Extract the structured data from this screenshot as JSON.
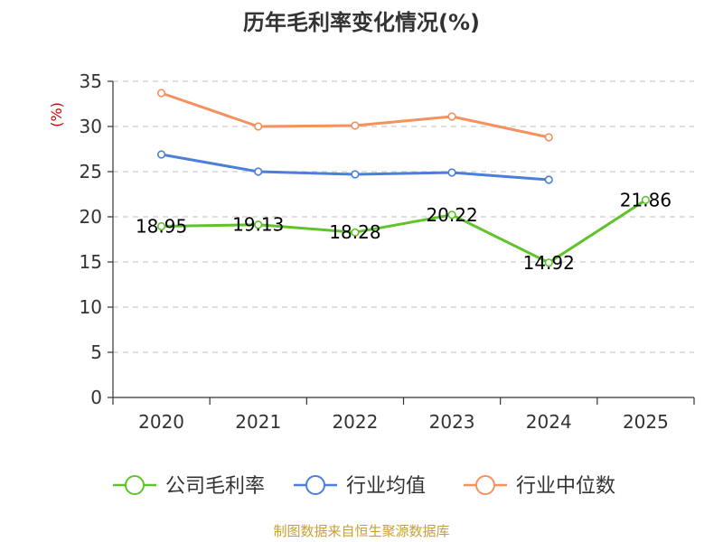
{
  "chart_data": {
    "type": "line",
    "title": "历年毛利率变化情况(%)",
    "ylabel": "(%)",
    "xlabel": "",
    "categories": [
      "2020",
      "2021",
      "2022",
      "2023",
      "2024",
      "2025"
    ],
    "ylim": [
      0,
      35
    ],
    "yticks": [
      0,
      5,
      10,
      15,
      20,
      25,
      30,
      35
    ],
    "grid": true,
    "legend": "bottom",
    "series": [
      {
        "name": "公司毛利率",
        "color": "#5fc32a",
        "values": [
          18.95,
          19.13,
          18.28,
          20.22,
          14.92,
          21.86
        ],
        "labels": [
          "18.95",
          "19.13",
          "18.28",
          "20.22",
          "14.92",
          "21.86"
        ]
      },
      {
        "name": "行业均值",
        "color": "#4b7fd9",
        "values": [
          26.9,
          25.0,
          24.7,
          24.9,
          24.1,
          null
        ]
      },
      {
        "name": "行业中位数",
        "color": "#f4915e",
        "values": [
          33.7,
          30.0,
          30.1,
          31.1,
          28.8,
          null
        ]
      }
    ]
  },
  "source_text": "制图数据来自恒生聚源数据库",
  "colors": {
    "unit_label": "#cc0000",
    "source_text": "#c8a032",
    "axis": "#333333",
    "grid": "#cccccc"
  }
}
